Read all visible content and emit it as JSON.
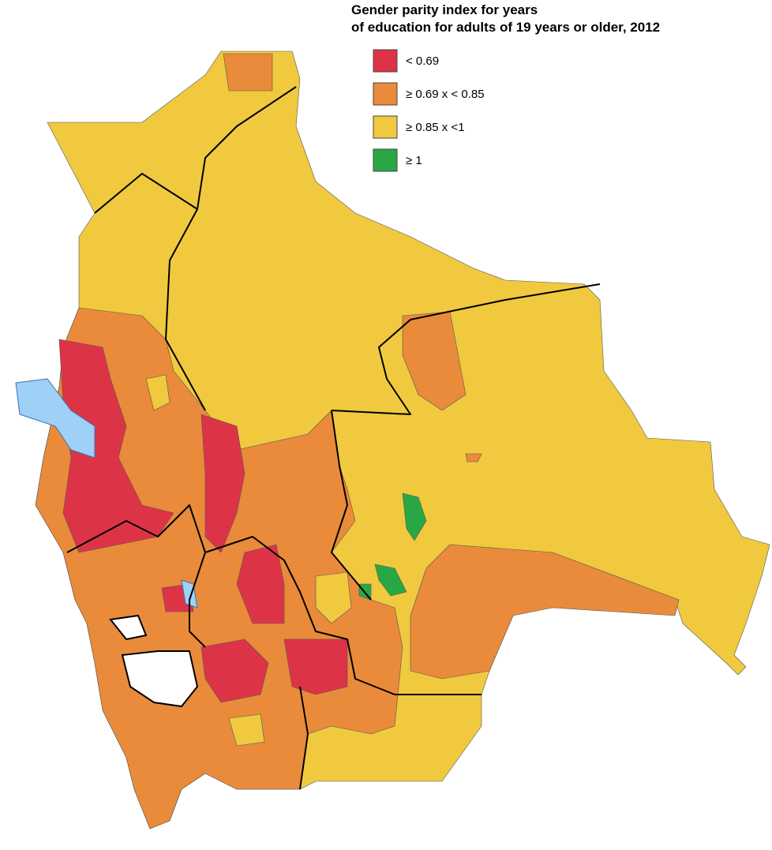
{
  "title": [
    "Gender parity index for years",
    "of education for adults of 19 years or older, 2012"
  ],
  "legend": [
    {
      "label": "< 0.69",
      "color": "#dc3446"
    },
    {
      "label": "≥ 0.69 x  < 0.85",
      "color": "#e98b3a"
    },
    {
      "label": "≥ 0.85 x  <1",
      "color": "#f0c93f"
    },
    {
      "label": "≥ 1",
      "color": "#2aa745"
    }
  ]
}
